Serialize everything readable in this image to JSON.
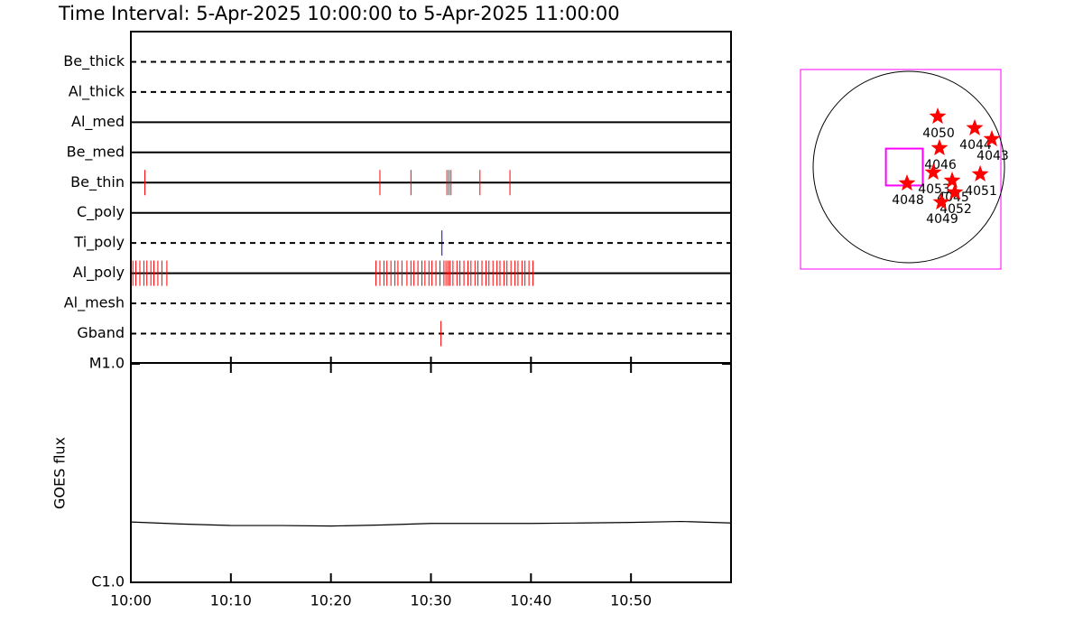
{
  "chart_data": [
    {
      "type": "exposure-timeline",
      "title": "Time Interval:  5-Apr-2025 10:00:00 to  5-Apr-2025 11:00:00",
      "xlim": [
        0,
        60
      ],
      "filters": [
        {
          "name": "Be_thick",
          "line_style": "dashed",
          "color": "#ff0000",
          "times": []
        },
        {
          "name": "Al_thick",
          "line_style": "dashed",
          "color": "#ff0000",
          "times": []
        },
        {
          "name": "Al_med",
          "line_style": "solid",
          "color": "#ff0000",
          "times": []
        },
        {
          "name": "Be_med",
          "line_style": "solid",
          "color": "#ff0000",
          "times": []
        },
        {
          "name": "Be_thin",
          "line_style": "solid",
          "color": "#ff0000",
          "times": [
            1.4,
            24.9,
            28.0,
            31.6,
            31.8,
            32.0,
            34.9,
            37.9
          ]
        },
        {
          "name": "C_poly",
          "line_style": "solid",
          "color": "#ff0000",
          "times": []
        },
        {
          "name": "Ti_poly",
          "line_style": "dashed",
          "color": "#0000ff",
          "times": [
            31.1
          ]
        },
        {
          "name": "Al_poly",
          "line_style": "solid",
          "color": "#ff0000",
          "times": [
            0.2,
            0.5,
            0.9,
            1.3,
            1.6,
            2.0,
            2.3,
            2.7,
            3.1,
            3.6,
            24.5,
            24.9,
            25.3,
            25.6,
            26.0,
            26.4,
            26.7,
            27.1,
            27.6,
            28.0,
            28.3,
            28.7,
            29.1,
            29.4,
            29.8,
            30.1,
            30.5,
            30.9,
            31.3,
            31.5,
            31.7,
            31.9,
            32.2,
            32.6,
            32.9,
            33.3,
            33.7,
            34.0,
            34.4,
            34.7,
            35.1,
            35.5,
            35.8,
            36.2,
            36.6,
            36.9,
            37.3,
            37.6,
            38.0,
            38.4,
            38.7,
            39.1,
            39.4,
            39.8,
            40.2
          ]
        },
        {
          "name": "Al_mesh",
          "line_style": "dashed",
          "color": "#ff0000",
          "times": []
        },
        {
          "name": "Gband",
          "line_style": "dashed",
          "color": "#ff0000",
          "times": [
            31.0
          ]
        }
      ]
    },
    {
      "type": "line",
      "ylabel": "GOES flux",
      "log_scale": true,
      "xlim": [
        0,
        60
      ],
      "xticks": [
        {
          "value": 0,
          "label": "10:00"
        },
        {
          "value": 10,
          "label": "10:10"
        },
        {
          "value": 20,
          "label": "10:20"
        },
        {
          "value": 30,
          "label": "10:30"
        },
        {
          "value": 40,
          "label": "10:40"
        },
        {
          "value": 50,
          "label": "10:50"
        }
      ],
      "ylim": [
        1e-06,
        1e-05
      ],
      "yticks": [
        {
          "value": 1e-06,
          "label": "C1.0"
        },
        {
          "value": 1e-05,
          "label": "M1.0"
        }
      ],
      "series": [
        {
          "color": "#000000",
          "x": [
            0,
            5,
            10,
            15,
            20,
            25,
            30,
            35,
            40,
            45,
            50,
            55,
            60
          ],
          "values": [
            1.89e-06,
            1.85e-06,
            1.82e-06,
            1.82e-06,
            1.81e-06,
            1.83e-06,
            1.86e-06,
            1.86e-06,
            1.86e-06,
            1.87e-06,
            1.88e-06,
            1.9e-06,
            1.87e-06
          ]
        }
      ]
    },
    {
      "type": "solar-map",
      "disk_radius": 960,
      "fov": {
        "center": [
          -45,
          0
        ],
        "size": 370
      },
      "star_color": "#ff0000",
      "fov_color": "#ff00ff",
      "regions": [
        {
          "label": "4050",
          "x": 290,
          "y": 507
        },
        {
          "label": "4044",
          "x": 661,
          "y": 390
        },
        {
          "label": "4043",
          "x": 833,
          "y": 281
        },
        {
          "label": "4046",
          "x": 308,
          "y": 190
        },
        {
          "label": "4053",
          "x": 245,
          "y": -54
        },
        {
          "label": "4045",
          "x": 435,
          "y": -136
        },
        {
          "label": "4051",
          "x": 716,
          "y": -72
        },
        {
          "label": "4048",
          "x": -18,
          "y": -163
        },
        {
          "label": "4052",
          "x": 462,
          "y": -254
        },
        {
          "label": "4049",
          "x": 326,
          "y": -353
        }
      ]
    }
  ]
}
